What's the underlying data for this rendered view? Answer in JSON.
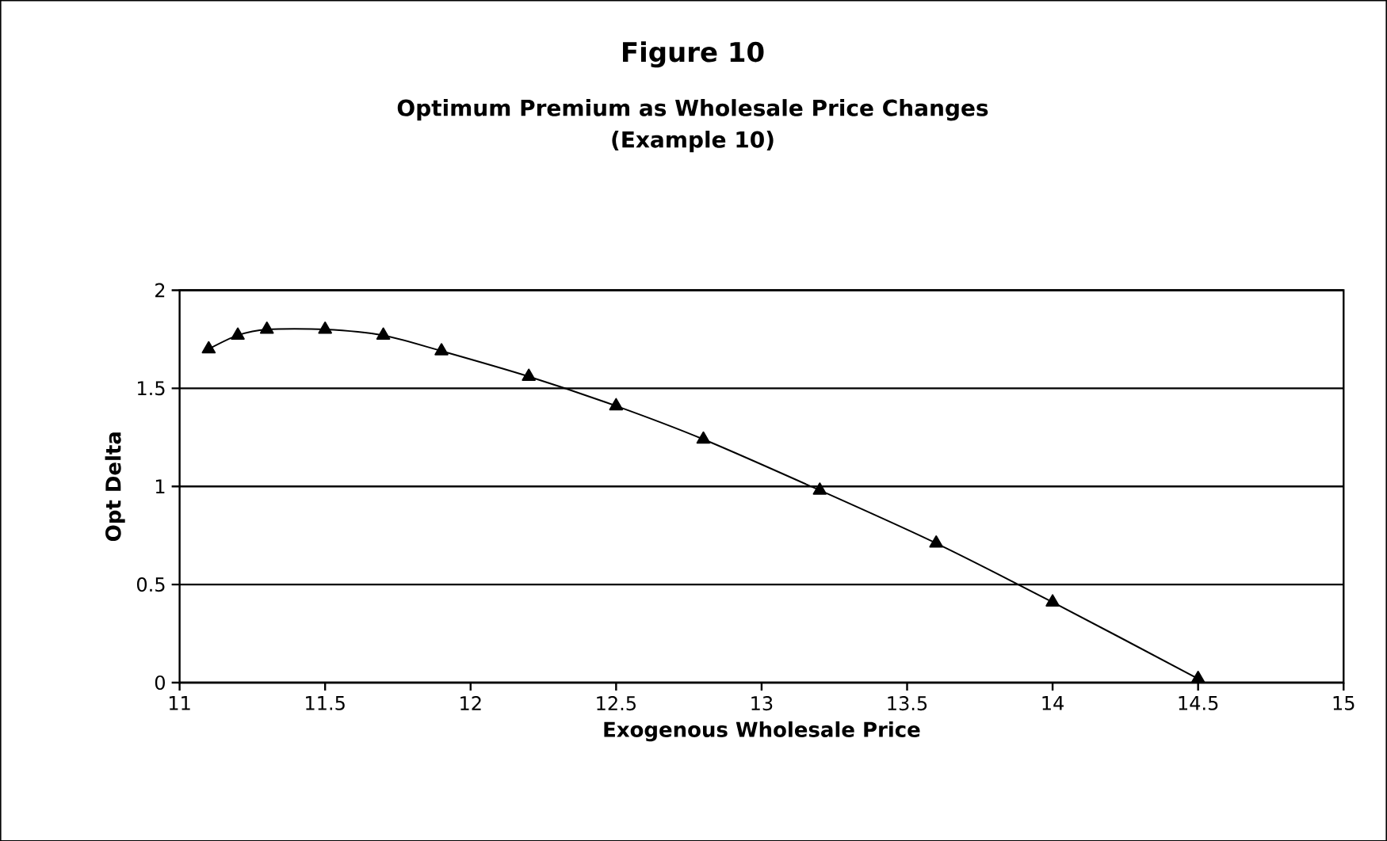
{
  "chart_data": {
    "type": "line",
    "title": "Figure 10",
    "subtitle": "Optimum Premium as Wholesale Price Changes\n(Example 10)",
    "xlabel": "Exogenous Wholesale Price",
    "ylabel": "Opt Delta",
    "x": [
      11.1,
      11.2,
      11.3,
      11.5,
      11.7,
      11.9,
      12.2,
      12.5,
      12.8,
      13.2,
      13.6,
      14.0,
      14.5
    ],
    "series": [
      {
        "color": "#000000",
        "values": [
          1.7,
          1.77,
          1.8,
          1.8,
          1.77,
          1.69,
          1.56,
          1.41,
          1.24,
          0.98,
          0.71,
          0.41,
          0.02
        ]
      }
    ],
    "xlim": [
      11,
      15
    ],
    "xticks": [
      11,
      11.5,
      12,
      12.5,
      13,
      13.5,
      14,
      14.5,
      15
    ],
    "ylim": [
      0,
      2
    ],
    "yticks": [
      0,
      0.5,
      1,
      1.5,
      2
    ],
    "grid": "y",
    "marker": "triangle",
    "line_style": "solid"
  }
}
